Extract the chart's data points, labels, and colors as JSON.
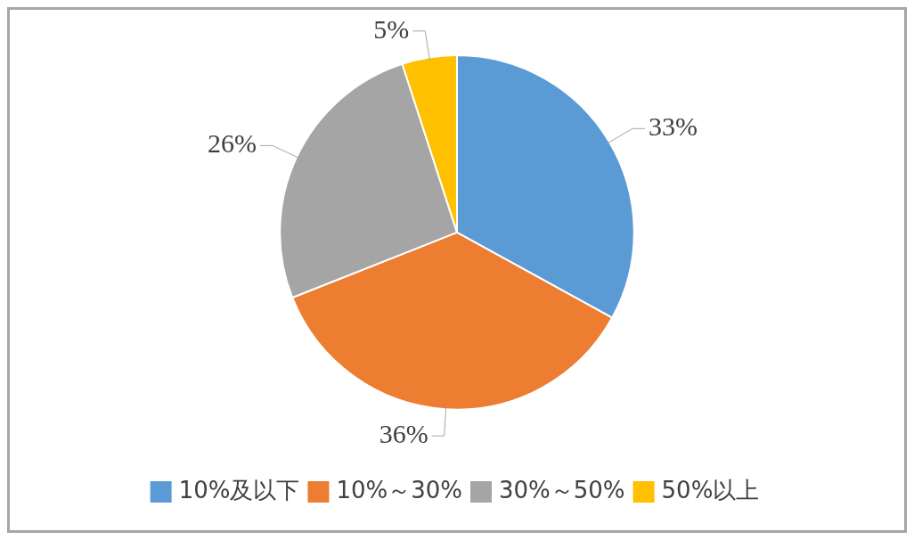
{
  "chart_data": {
    "type": "pie",
    "categories": [
      "10%及以下",
      "10%～30%",
      "30%～50%",
      "50%以上"
    ],
    "values": [
      33,
      36,
      26,
      5
    ],
    "colors": [
      "#5b9bd5",
      "#ed7d31",
      "#a5a5a5",
      "#ffc000"
    ],
    "value_labels": [
      "33%",
      "36%",
      "26%",
      "5%"
    ],
    "legend": "bottom"
  }
}
